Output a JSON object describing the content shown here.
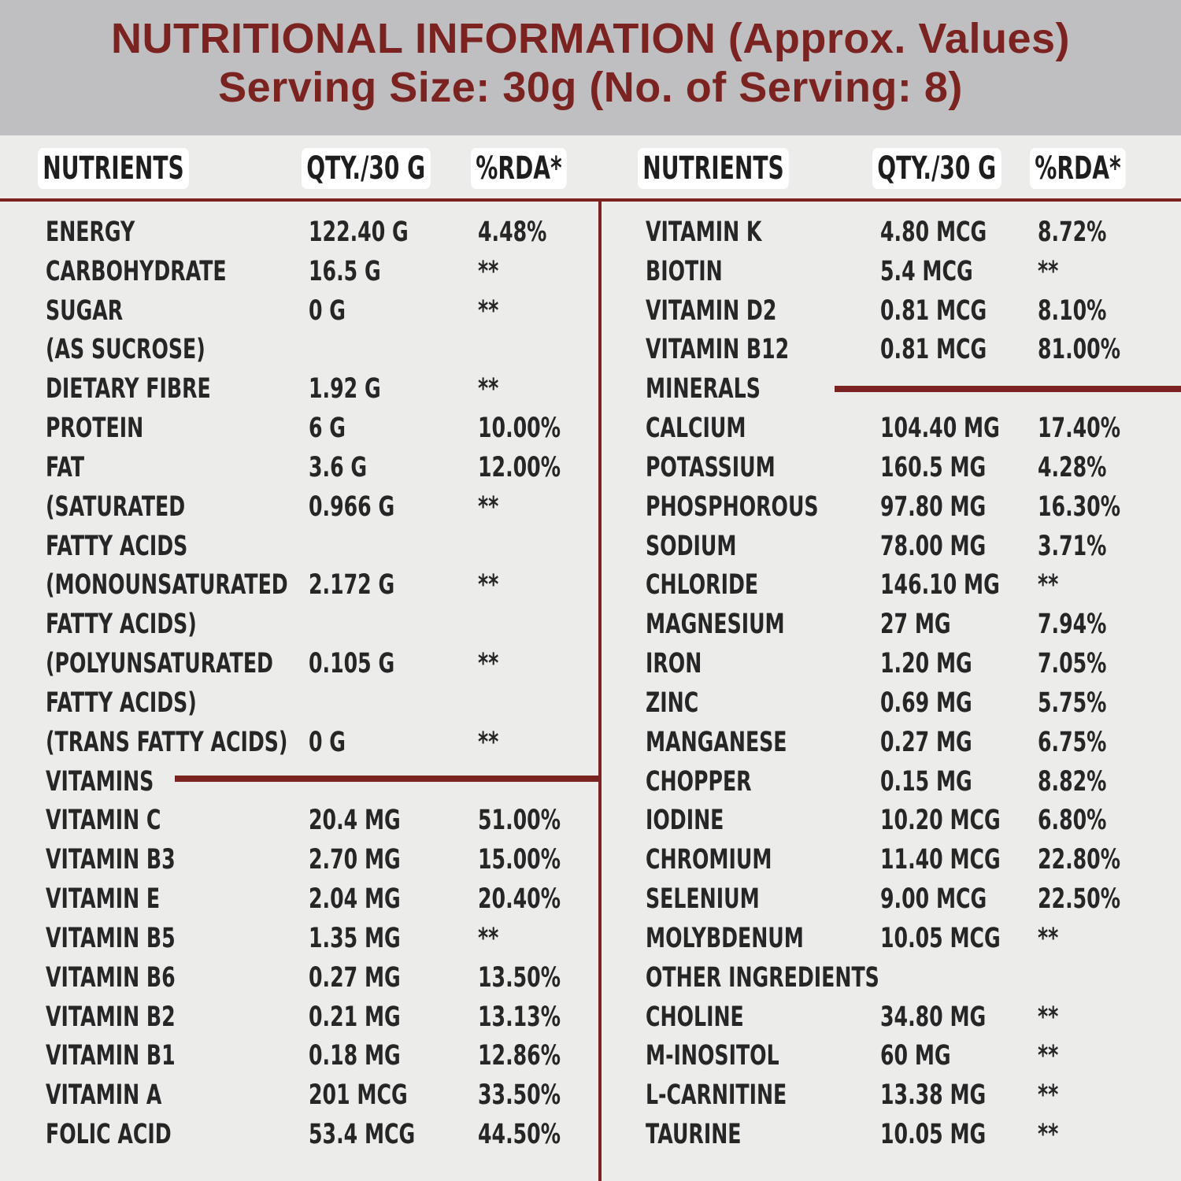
{
  "header": {
    "title": "NUTRITIONAL INFORMATION (Approx. Values)",
    "subtitle": "Serving Size: 30g (No. of Serving: 8)"
  },
  "columns": {
    "left": [
      "NUTRIENTS",
      "QTY./30 G",
      "%RDA*"
    ],
    "right": [
      "NUTRIENTS",
      "QTY./30 G",
      "%RDA*"
    ]
  },
  "left_rows": [
    {
      "name": "ENERGY",
      "qty": "122.40 G",
      "rda": "4.48%"
    },
    {
      "name": "CARBOHYDRATE",
      "qty": "16.5 G",
      "rda": "**"
    },
    {
      "name": "SUGAR",
      "qty": "0 G",
      "rda": "**"
    },
    {
      "name": "(AS SUCROSE)",
      "qty": "",
      "rda": ""
    },
    {
      "name": "DIETARY FIBRE",
      "qty": "1.92 G",
      "rda": "**"
    },
    {
      "name": "PROTEIN",
      "qty": "6 G",
      "rda": "10.00%"
    },
    {
      "name": "FAT",
      "qty": "3.6 G",
      "rda": "12.00%"
    },
    {
      "name": "(SATURATED",
      "qty": "0.966 G",
      "rda": "**"
    },
    {
      "name": "FATTY ACIDS",
      "qty": "",
      "rda": ""
    },
    {
      "name": "(MONOUNSATURATED",
      "qty": "2.172 G",
      "rda": "**"
    },
    {
      "name": "FATTY ACIDS)",
      "qty": "",
      "rda": ""
    },
    {
      "name": "(POLYUNSATURATED",
      "qty": "0.105 G",
      "rda": "**"
    },
    {
      "name": "FATTY ACIDS)",
      "qty": "",
      "rda": ""
    },
    {
      "name": "(TRANS FATTY ACIDS)",
      "qty": "0 G",
      "rda": "**"
    },
    {
      "name": "VITAMINS",
      "qty": "",
      "rda": ""
    },
    {
      "name": "VITAMIN C",
      "qty": "20.4 MG",
      "rda": "51.00%"
    },
    {
      "name": "VITAMIN B3",
      "qty": "2.70 MG",
      "rda": "15.00%"
    },
    {
      "name": "VITAMIN E",
      "qty": "2.04 MG",
      "rda": "20.40%"
    },
    {
      "name": "VITAMIN B5",
      "qty": "1.35 MG",
      "rda": "**"
    },
    {
      "name": "VITAMIN B6",
      "qty": "0.27 MG",
      "rda": "13.50%"
    },
    {
      "name": "VITAMIN B2",
      "qty": "0.21 MG",
      "rda": "13.13%"
    },
    {
      "name": "VITAMIN B1",
      "qty": "0.18 MG",
      "rda": "12.86%"
    },
    {
      "name": "VITAMIN A",
      "qty": "201 MCG",
      "rda": "33.50%"
    },
    {
      "name": "FOLIC ACID",
      "qty": "53.4 MCG",
      "rda": "44.50%"
    }
  ],
  "right_rows": [
    {
      "name": "VITAMIN K",
      "qty": "4.80 MCG",
      "rda": "8.72%"
    },
    {
      "name": "BIOTIN",
      "qty": "5.4 MCG",
      "rda": "**"
    },
    {
      "name": "VITAMIN D2",
      "qty": "0.81 MCG",
      "rda": "8.10%"
    },
    {
      "name": "VITAMIN  B12",
      "qty": "0.81 MCG",
      "rda": "81.00%"
    },
    {
      "name": "MINERALS",
      "qty": "",
      "rda": ""
    },
    {
      "name": "CALCIUM",
      "qty": "104.40 MG",
      "rda": "17.40%"
    },
    {
      "name": "POTASSIUM",
      "qty": "160.5 MG",
      "rda": "4.28%"
    },
    {
      "name": "PHOSPHOROUS",
      "qty": "97.80 MG",
      "rda": "16.30%"
    },
    {
      "name": "SODIUM",
      "qty": "78.00 MG",
      "rda": "3.71%"
    },
    {
      "name": "CHLORIDE",
      "qty": "146.10 MG",
      "rda": "**"
    },
    {
      "name": "MAGNESIUM",
      "qty": "27 MG",
      "rda": "7.94%"
    },
    {
      "name": "IRON",
      "qty": "1.20 MG",
      "rda": "7.05%"
    },
    {
      "name": "ZINC",
      "qty": "0.69 MG",
      "rda": "5.75%"
    },
    {
      "name": "MANGANESE",
      "qty": "0.27 MG",
      "rda": "6.75%"
    },
    {
      "name": "CHOPPER",
      "qty": "0.15 MG",
      "rda": "8.82%"
    },
    {
      "name": "IODINE",
      "qty": "10.20 MCG",
      "rda": "6.80%"
    },
    {
      "name": "CHROMIUM",
      "qty": "11.40 MCG",
      "rda": "22.80%"
    },
    {
      "name": "SELENIUM",
      "qty": "9.00 MCG",
      "rda": "22.50%"
    },
    {
      "name": "MOLYBDENUM",
      "qty": "10.05 MCG",
      "rda": "**"
    },
    {
      "name": "OTHER INGREDIENTS",
      "qty": "",
      "rda": ""
    },
    {
      "name": "CHOLINE",
      "qty": "34.80 MG",
      "rda": "**"
    },
    {
      "name": "M-INOSITOL",
      "qty": "60 MG",
      "rda": "**"
    },
    {
      "name": "L-CARNITINE",
      "qty": "13.38 MG",
      "rda": "**"
    },
    {
      "name": "TAURINE",
      "qty": "10.05 MG",
      "rda": "**"
    }
  ],
  "colors": {
    "accent": "#7b2320",
    "header_bg": "#bfbfc1",
    "body_bg": "#ececeb",
    "text": "#262626"
  }
}
